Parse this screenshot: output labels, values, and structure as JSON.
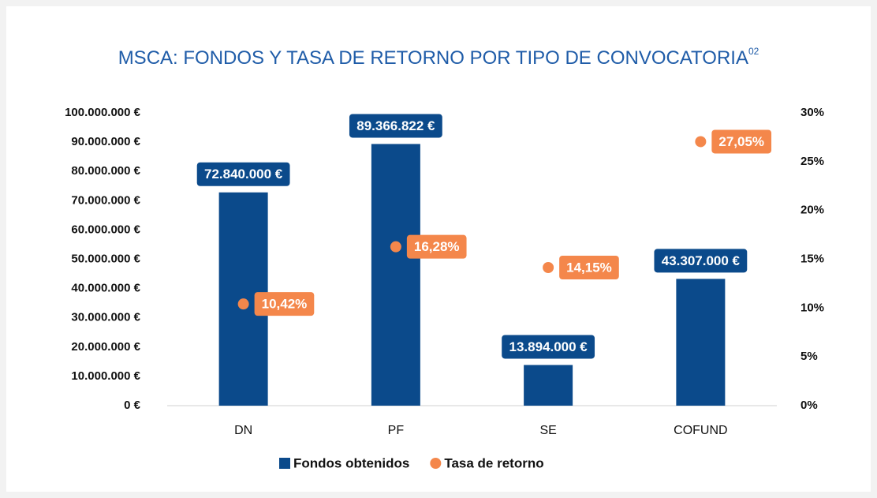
{
  "chart_data": {
    "type": "bar",
    "title": "MSCA: FONDOS Y TASA DE RETORNO POR TIPO DE CONVOCATORIA",
    "title_superscript": "02",
    "categories": [
      "DN",
      "PF",
      "SE",
      "COFUND"
    ],
    "series": [
      {
        "name": "Fondos obtenidos",
        "type": "bar",
        "color": "#0b4a8b",
        "values": [
          72840000,
          89366822,
          13894000,
          43307000
        ],
        "value_labels": [
          "72.840.000 €",
          "89.366.822 €",
          "13.894.000 €",
          "43.307.000 €"
        ]
      },
      {
        "name": "Tasa de retorno",
        "type": "scatter",
        "axis": "y2",
        "color": "#f4874b",
        "values": [
          10.42,
          16.28,
          14.15,
          27.05
        ],
        "value_labels": [
          "10,42%",
          "16,28%",
          "14,15%",
          "27,05%"
        ]
      }
    ],
    "ylim": [
      0,
      100000000
    ],
    "yticks": [
      {
        "value": 0,
        "label": "0 €"
      },
      {
        "value": 10000000,
        "label": "10.000.000 €"
      },
      {
        "value": 20000000,
        "label": "20.000.000 €"
      },
      {
        "value": 30000000,
        "label": "30.000.000 €"
      },
      {
        "value": 40000000,
        "label": "40.000.000 €"
      },
      {
        "value": 50000000,
        "label": "50.000.000 €"
      },
      {
        "value": 60000000,
        "label": "60.000.000 €"
      },
      {
        "value": 70000000,
        "label": "70.000.000 €"
      },
      {
        "value": 80000000,
        "label": "80.000.000 €"
      },
      {
        "value": 90000000,
        "label": "90.000.000 €"
      },
      {
        "value": 100000000,
        "label": "100.000.000 €"
      }
    ],
    "y2lim": [
      0,
      30
    ],
    "y2ticks": [
      {
        "value": 0,
        "label": "0%"
      },
      {
        "value": 5,
        "label": "5%"
      },
      {
        "value": 10,
        "label": "10%"
      },
      {
        "value": 15,
        "label": "15%"
      },
      {
        "value": 20,
        "label": "20%"
      },
      {
        "value": 25,
        "label": "25%"
      },
      {
        "value": 30,
        "label": "30%"
      }
    ],
    "legend": "bottom"
  }
}
